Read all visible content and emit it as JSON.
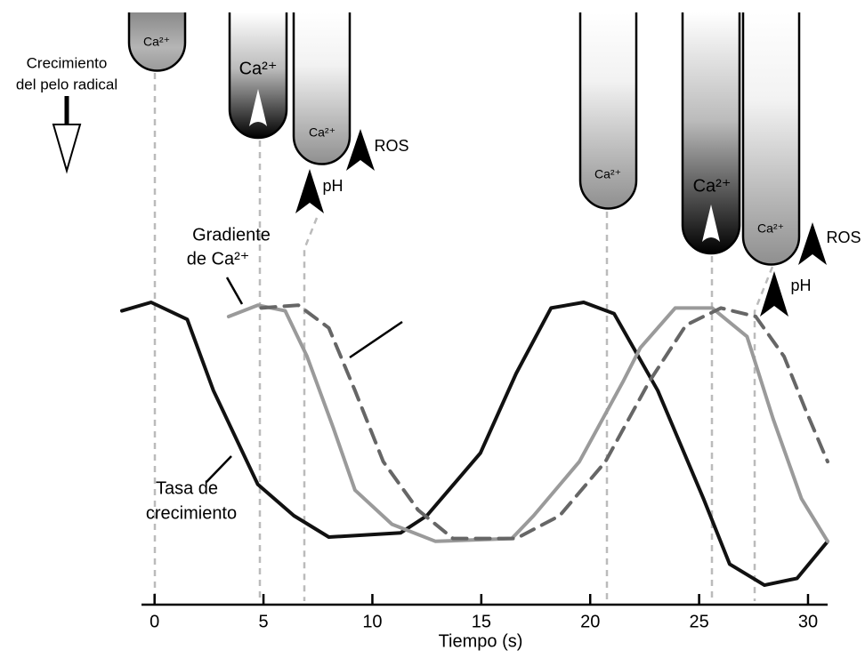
{
  "chart_data": {
    "type": "line",
    "x_label": "Tiempo (s)",
    "xlim": [
      -0.6,
      30.9
    ],
    "xticks": [
      0,
      5,
      10,
      15,
      20,
      25,
      30
    ],
    "ylim": [
      0,
      1
    ],
    "grid": false,
    "series": [
      {
        "color": "#111111",
        "dash": false,
        "x": [
          -1.5,
          -0.16,
          1.5,
          2.7,
          4.74,
          6.4,
          8.0,
          11.3,
          12.5,
          14.96,
          16.6,
          18.2,
          19.7,
          21.1,
          23.1,
          25.2,
          26.4,
          28.0,
          29.5,
          30.9
        ],
        "values": [
          0.97,
          1.0,
          0.94,
          0.69,
          0.36,
          0.25,
          0.175,
          0.19,
          0.25,
          0.47,
          0.75,
          0.98,
          1.0,
          0.96,
          0.69,
          0.31,
          0.08,
          0.006,
          0.03,
          0.16
        ]
      },
      {
        "color": "#9a9a9a",
        "dash": false,
        "x": [
          3.4,
          4.74,
          6.0,
          7.0,
          8.2,
          9.2,
          10.9,
          12.9,
          16.4,
          17.4,
          19.5,
          21.5,
          22.3,
          23.9,
          25.6,
          27.2,
          28.4,
          29.7,
          30.9
        ],
        "values": [
          0.95,
          0.99,
          0.97,
          0.81,
          0.56,
          0.34,
          0.22,
          0.16,
          0.17,
          0.25,
          0.44,
          0.72,
          0.84,
          0.98,
          0.98,
          0.88,
          0.59,
          0.31,
          0.16
        ]
      },
      {
        "color": "#666666",
        "dash": true,
        "x": [
          4.9,
          6.6,
          8.0,
          9.2,
          10.5,
          12.1,
          13.7,
          16.6,
          18.6,
          20.7,
          22.7,
          24.4,
          26.0,
          27.6,
          28.9,
          29.9,
          30.9
        ],
        "values": [
          0.98,
          0.99,
          0.91,
          0.69,
          0.44,
          0.27,
          0.17,
          0.17,
          0.25,
          0.44,
          0.72,
          0.92,
          0.98,
          0.95,
          0.81,
          0.62,
          0.44
        ]
      }
    ]
  },
  "diagram": {
    "growth_label": [
      "Crecimiento",
      "del pelo radical"
    ],
    "gradient_label": [
      "Gradiente",
      "de Ca²⁺"
    ],
    "rate_label": [
      "Tasa de",
      "crecimiento"
    ],
    "tube_labels": [
      "Ca²⁺",
      "Ca²⁺",
      "Ca²⁺",
      "Ca²⁺",
      "Ca²⁺",
      "Ca²⁺"
    ],
    "arrow_labels": [
      "pH",
      "ROS",
      "pH",
      "ROS"
    ]
  }
}
